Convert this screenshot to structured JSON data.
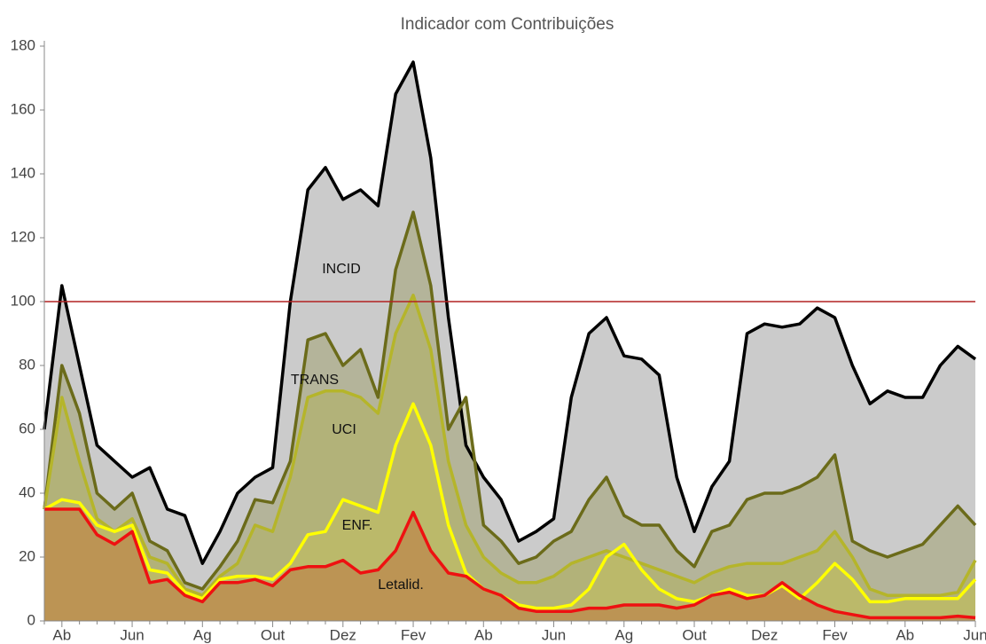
{
  "chart_data": {
    "type": "area",
    "title": "Indicador com Contribuições",
    "categories": [
      null,
      "Ab",
      null,
      null,
      null,
      "Jun",
      null,
      null,
      null,
      "Ag",
      null,
      null,
      null,
      "Out",
      null,
      null,
      null,
      "Dez",
      null,
      null,
      null,
      "Fev",
      null,
      null,
      null,
      "Ab",
      null,
      null,
      null,
      "Jun",
      null,
      null,
      null,
      "Ag",
      null,
      null,
      null,
      "Out",
      null,
      null,
      null,
      "Dez",
      null,
      null,
      null,
      "Fev",
      null,
      null,
      null,
      "Ab",
      null,
      null,
      null,
      "Jun"
    ],
    "ylim": [
      0,
      180
    ],
    "yticks": [
      0,
      20,
      40,
      60,
      80,
      100,
      120,
      140,
      160,
      180
    ],
    "reference_line": {
      "value": 100,
      "color": "#b22222"
    },
    "series": [
      {
        "name": "INCID",
        "color": "#000000",
        "fill": "#cbcbcb",
        "fill_opacity": 1,
        "values": [
          60,
          105,
          80,
          55,
          50,
          45,
          48,
          35,
          33,
          18,
          28,
          40,
          45,
          48,
          100,
          135,
          142,
          132,
          135,
          130,
          165,
          175,
          145,
          95,
          55,
          45,
          38,
          25,
          28,
          32,
          70,
          90,
          95,
          83,
          82,
          77,
          45,
          28,
          42,
          50,
          90,
          93,
          92,
          93,
          98,
          95,
          80,
          68,
          72,
          70,
          70,
          80,
          86,
          82
        ]
      },
      {
        "name": "TRANS",
        "color": "#6b6b1a",
        "fill": "#8a8a40",
        "fill_opacity": 0.35,
        "values": [
          35,
          80,
          65,
          40,
          35,
          40,
          25,
          22,
          12,
          10,
          17,
          25,
          38,
          37,
          50,
          88,
          90,
          80,
          85,
          70,
          110,
          128,
          105,
          60,
          70,
          30,
          25,
          18,
          20,
          25,
          28,
          38,
          45,
          33,
          30,
          30,
          22,
          17,
          28,
          30,
          38,
          40,
          40,
          42,
          45,
          52,
          25,
          22,
          20,
          22,
          24,
          30,
          36,
          30
        ]
      },
      {
        "name": "UCI",
        "color": "#b5b52a",
        "fill": "#b0b030",
        "fill_opacity": 0.3,
        "values": [
          35,
          70,
          50,
          32,
          28,
          32,
          20,
          18,
          10,
          8,
          14,
          18,
          30,
          28,
          45,
          70,
          72,
          72,
          70,
          65,
          90,
          102,
          85,
          50,
          30,
          20,
          15,
          12,
          12,
          14,
          18,
          20,
          22,
          20,
          18,
          16,
          14,
          12,
          15,
          17,
          18,
          18,
          18,
          20,
          22,
          28,
          20,
          10,
          8,
          8,
          8,
          8,
          9,
          19
        ]
      },
      {
        "name": "ENF.",
        "color": "#ffff00",
        "fill": "#d8d040",
        "fill_opacity": 0.25,
        "values": [
          35,
          38,
          37,
          30,
          28,
          30,
          16,
          15,
          9,
          7,
          13,
          14,
          14,
          13,
          18,
          27,
          28,
          38,
          36,
          34,
          55,
          68,
          55,
          30,
          15,
          10,
          8,
          5,
          4,
          4,
          5,
          10,
          20,
          24,
          16,
          10,
          7,
          6,
          8,
          10,
          8,
          8,
          11,
          7,
          12,
          18,
          13,
          6,
          6,
          7,
          7,
          7,
          7,
          13
        ]
      },
      {
        "name": "Letalid.",
        "color": "#ee1111",
        "fill": "#c04020",
        "fill_opacity": 0.3,
        "values": [
          35,
          35,
          35,
          27,
          24,
          28,
          12,
          13,
          8,
          6,
          12,
          12,
          13,
          11,
          16,
          17,
          17,
          19,
          15,
          16,
          22,
          34,
          22,
          15,
          14,
          10,
          8,
          4,
          3,
          3,
          3,
          4,
          4,
          5,
          5,
          5,
          4,
          5,
          8,
          9,
          7,
          8,
          12,
          8,
          5,
          3,
          2,
          1,
          1,
          1,
          1,
          1,
          1.5,
          1
        ]
      }
    ]
  }
}
